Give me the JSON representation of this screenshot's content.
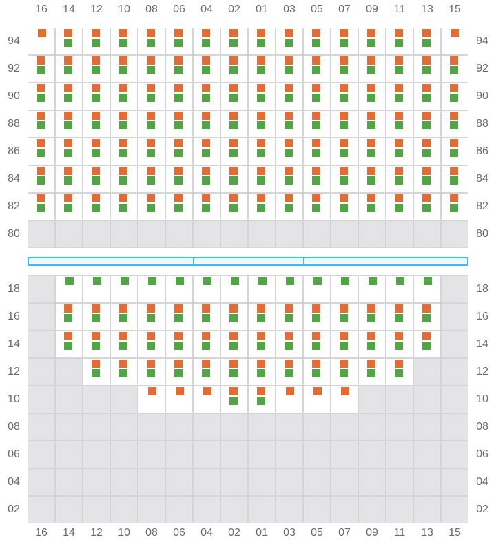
{
  "columns": [
    "16",
    "14",
    "12",
    "10",
    "08",
    "06",
    "04",
    "02",
    "01",
    "03",
    "05",
    "07",
    "09",
    "11",
    "13",
    "15"
  ],
  "legend_codes": {
    "B": "orange and green markers",
    "O": "orange marker only",
    "G": "green marker only",
    "W": "empty",
    "X": "unavailable (gray)"
  },
  "colors": {
    "orange": "#e06c38",
    "green": "#52a447",
    "unavailable": "#e4e4e7",
    "grid": "#d4d4d8",
    "divider": "#38bdf8"
  },
  "top_block": {
    "rows": [
      {
        "label": "94",
        "cells": "OBBBBBBBBBBBBBBO"
      },
      {
        "label": "92",
        "cells": "BBBBBBBBBBBBBBBB"
      },
      {
        "label": "90",
        "cells": "BBBBBBBBBBBBBBBB"
      },
      {
        "label": "88",
        "cells": "BBBBBBBBBBBBBBBB"
      },
      {
        "label": "86",
        "cells": "BBBBBBBBBBBBBBBB"
      },
      {
        "label": "84",
        "cells": "BBBBBBBBBBBBBBBB"
      },
      {
        "label": "82",
        "cells": "BBBBBBBBBBBBBBBB"
      },
      {
        "label": "80",
        "cells": "XXXXXXXXXXXXXXXX"
      }
    ]
  },
  "divider_segments": [
    6,
    4,
    6
  ],
  "bottom_block": {
    "rows": [
      {
        "label": "18",
        "cells": "XGGGGGGGGGGGGGGX"
      },
      {
        "label": "16",
        "cells": "XBBBBBBBBBBBBBBX"
      },
      {
        "label": "14",
        "cells": "XBBBBBBBBBBBBBBX"
      },
      {
        "label": "12",
        "cells": "XXBBBBBBBBBBBBXX"
      },
      {
        "label": "10",
        "cells": "XXXXOOOBBOOOXXXX"
      },
      {
        "label": "08",
        "cells": "XXXXXXXXXXXXXXXX"
      },
      {
        "label": "06",
        "cells": "XXXXXXXXXXXXXXXX"
      },
      {
        "label": "04",
        "cells": "XXXXXXXXXXXXXXXX"
      },
      {
        "label": "02",
        "cells": "XXXXXXXXXXXXXXXX"
      }
    ]
  }
}
